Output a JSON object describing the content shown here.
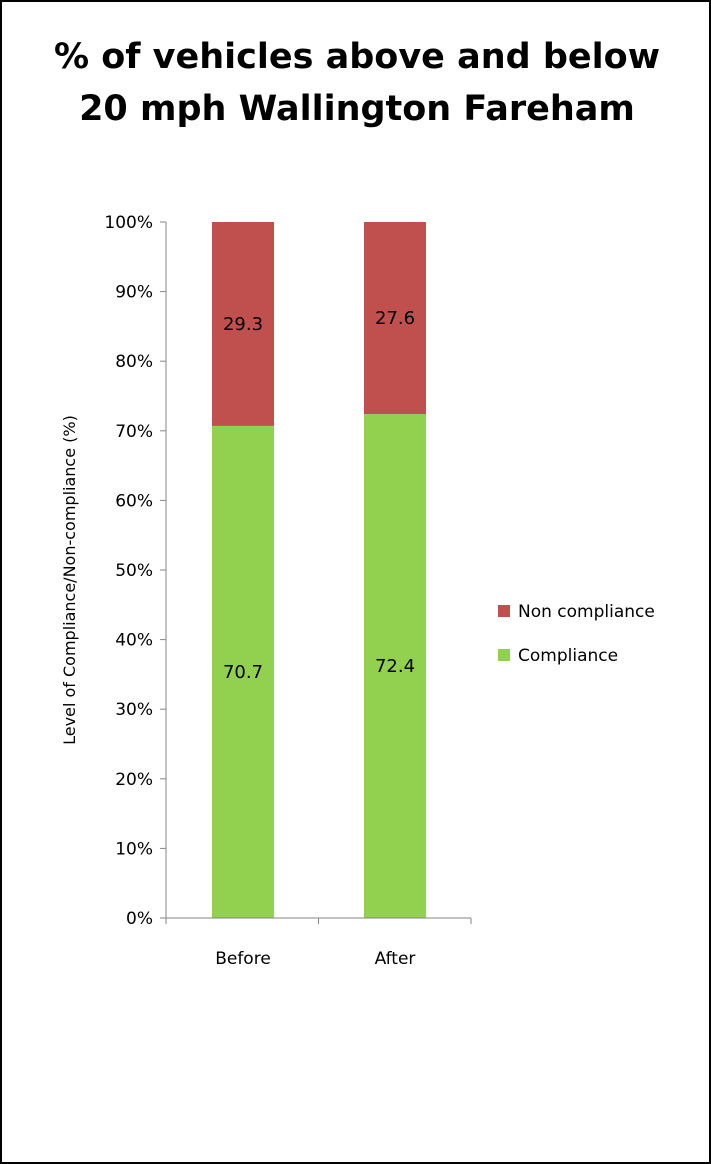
{
  "chart_data": {
    "type": "bar",
    "stacked": true,
    "title": "% of vehicles above and below 20 mph Wallington  Fareham",
    "title_lines": [
      "% of vehicles above and below",
      "20 mph Wallington  Fareham"
    ],
    "xlabel": "",
    "ylabel": "Level of Compliance/Non-compliance (%)",
    "categories": [
      "Before",
      "After"
    ],
    "series": [
      {
        "name": "Compliance",
        "values": [
          70.7,
          72.4
        ],
        "color": "#92D050"
      },
      {
        "name": "Non compliance",
        "values": [
          29.3,
          27.6
        ],
        "color": "#C0504D"
      }
    ],
    "ylim": [
      0,
      100
    ],
    "y_ticks": [
      "0%",
      "10%",
      "20%",
      "30%",
      "40%",
      "50%",
      "60%",
      "70%",
      "80%",
      "90%",
      "100%"
    ],
    "y_tick_values": [
      0,
      10,
      20,
      30,
      40,
      50,
      60,
      70,
      80,
      90,
      100
    ],
    "legend": {
      "position": "right",
      "entries": [
        "Non compliance",
        "Compliance"
      ]
    },
    "grid": false
  }
}
